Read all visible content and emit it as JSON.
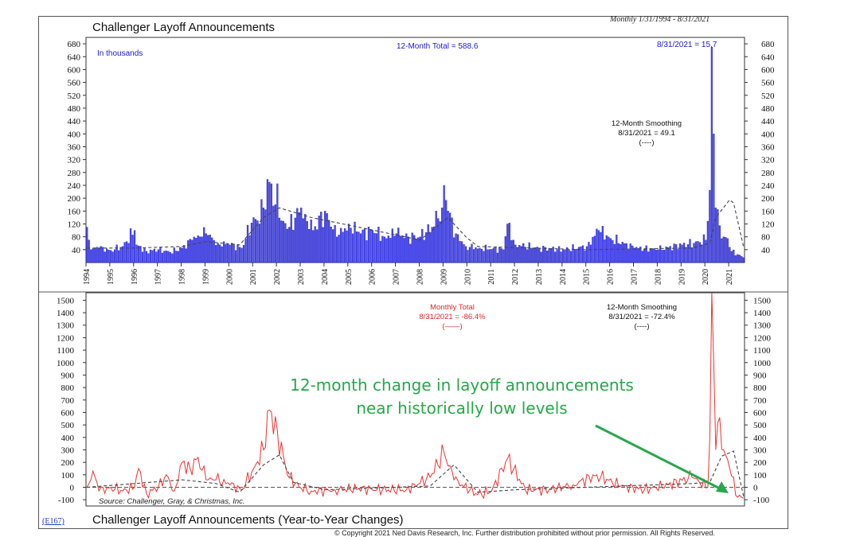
{
  "header": {
    "title": "Challenger Layoff Announcements",
    "date_range": "Monthly 1/31/1994 - 8/31/2021"
  },
  "footer": {
    "title": "Challenger Layoff Announcements (Year-to-Year Changes)",
    "chart_id": "(E167)",
    "copyright": "© Copyright 2021 Ned Davis Research, Inc.  Further distribution prohibited without prior permission.  All Rights Reserved.",
    "source": "Source: Challenger, Gray, & Christmas, Inc."
  },
  "top_panel": {
    "units_note": "In thousands",
    "total_label": "12-Month Total = 588.6",
    "last_label": "8/31/2021 = 15.7",
    "smoothing_label": "12-Month Smoothing",
    "smoothing_value": "8/31/2021 = 49.1",
    "smoothing_key": "(----)"
  },
  "bottom_panel": {
    "monthly_label": "Monthly Total",
    "monthly_value": "8/31/2021 = -86.4%",
    "monthly_key": "(——)",
    "smoothing_label": "12-Month Smoothing",
    "smoothing_value": "8/31/2021 = -72.4%",
    "smoothing_key": "(----)"
  },
  "annotation": {
    "line1": "12-month change in layoff announcements",
    "line2": "near historically low levels"
  },
  "colors": {
    "bars": "#4a4af0",
    "bar_edge": "#1818a8",
    "change_line": "#ee3333",
    "smoothing": "#444444",
    "annotation": "#27a84a"
  },
  "chart_data": [
    {
      "type": "bar",
      "title": "Challenger Layoff Announcements",
      "ylabel": "In thousands",
      "x_range": [
        "1994-01",
        "2021-08"
      ],
      "ylim": [
        0,
        700
      ],
      "yticks": [
        40,
        80,
        120,
        160,
        200,
        240,
        280,
        320,
        360,
        400,
        440,
        480,
        520,
        560,
        600,
        640,
        680
      ],
      "xticks": [
        "1994",
        "1995",
        "1996",
        "1997",
        "1998",
        "1999",
        "2000",
        "2001",
        "2002",
        "2003",
        "2004",
        "2005",
        "2006",
        "2007",
        "2008",
        "2009",
        "2010",
        "2011",
        "2012",
        "2013",
        "2014",
        "2015",
        "2016",
        "2017",
        "2018",
        "2019",
        "2020",
        "2021"
      ],
      "series_monthly_thousands_anchors": [
        [
          "1994-01",
          110
        ],
        [
          "1994-03",
          40
        ],
        [
          "1994-07",
          45
        ],
        [
          "1995-01",
          38
        ],
        [
          "1995-07",
          50
        ],
        [
          "1996-01",
          100
        ],
        [
          "1996-02",
          55
        ],
        [
          "1996-07",
          35
        ],
        [
          "1997-01",
          40
        ],
        [
          "1997-07",
          32
        ],
        [
          "1998-01",
          45
        ],
        [
          "1998-06",
          70
        ],
        [
          "1998-10",
          80
        ],
        [
          "1999-01",
          90
        ],
        [
          "1999-07",
          60
        ],
        [
          "2000-01",
          55
        ],
        [
          "2000-07",
          45
        ],
        [
          "2001-01",
          140
        ],
        [
          "2001-03",
          130
        ],
        [
          "2001-06",
          170
        ],
        [
          "2001-09",
          250
        ],
        [
          "2001-10",
          245
        ],
        [
          "2001-12",
          180
        ],
        [
          "2002-01",
          245
        ],
        [
          "2002-03",
          130
        ],
        [
          "2002-07",
          110
        ],
        [
          "2003-01",
          170
        ],
        [
          "2003-03",
          150
        ],
        [
          "2003-07",
          100
        ],
        [
          "2004-01",
          160
        ],
        [
          "2004-07",
          80
        ],
        [
          "2005-01",
          120
        ],
        [
          "2005-07",
          90
        ],
        [
          "2006-01",
          100
        ],
        [
          "2006-07",
          80
        ],
        [
          "2007-01",
          90
        ],
        [
          "2007-07",
          80
        ],
        [
          "2008-01",
          80
        ],
        [
          "2008-07",
          110
        ],
        [
          "2008-12",
          170
        ],
        [
          "2009-01",
          240
        ],
        [
          "2009-03",
          160
        ],
        [
          "2009-07",
          90
        ],
        [
          "2009-12",
          50
        ],
        [
          "2010-07",
          45
        ],
        [
          "2011-07",
          40
        ],
        [
          "2011-09",
          120
        ],
        [
          "2012-01",
          55
        ],
        [
          "2013-01",
          45
        ],
        [
          "2014-01",
          40
        ],
        [
          "2015-01",
          50
        ],
        [
          "2015-07",
          100
        ],
        [
          "2016-01",
          75
        ],
        [
          "2017-01",
          45
        ],
        [
          "2018-01",
          40
        ],
        [
          "2019-01",
          55
        ],
        [
          "2019-07",
          60
        ],
        [
          "2020-01",
          70
        ],
        [
          "2020-03",
          225
        ],
        [
          "2020-04",
          670
        ],
        [
          "2020-05",
          400
        ],
        [
          "2020-06",
          170
        ],
        [
          "2020-08",
          115
        ],
        [
          "2020-10",
          80
        ],
        [
          "2020-12",
          75
        ],
        [
          "2021-02",
          35
        ],
        [
          "2021-05",
          25
        ],
        [
          "2021-08",
          15.7
        ]
      ],
      "series_12m_smoothing_anchors": [
        [
          "1994-01",
          45
        ],
        [
          "1996-01",
          45
        ],
        [
          "1998-01",
          50
        ],
        [
          "1999-01",
          65
        ],
        [
          "2000-06",
          55
        ],
        [
          "2001-06",
          140
        ],
        [
          "2002-02",
          170
        ],
        [
          "2003-06",
          140
        ],
        [
          "2005-06",
          110
        ],
        [
          "2008-01",
          70
        ],
        [
          "2009-03",
          140
        ],
        [
          "2009-12",
          80
        ],
        [
          "2010-06",
          50
        ],
        [
          "2015-01",
          40
        ],
        [
          "2019-06",
          45
        ],
        [
          "2020-03",
          60
        ],
        [
          "2020-06",
          140
        ],
        [
          "2021-01",
          195
        ],
        [
          "2021-03",
          185
        ],
        [
          "2021-08",
          49.1
        ]
      ]
    },
    {
      "type": "line",
      "title": "Challenger Layoff Announcements (Year-to-Year Changes)",
      "ylim": [
        -150,
        1560
      ],
      "yticks": [
        -100,
        0,
        100,
        200,
        300,
        400,
        500,
        600,
        700,
        800,
        900,
        1000,
        1100,
        1200,
        1300,
        1400,
        1500
      ],
      "series": [
        {
          "name": "Monthly Total",
          "points": [
            [
              "1994-01",
              0
            ],
            [
              "1994-04",
              130
            ],
            [
              "1994-07",
              -30
            ],
            [
              "1995-01",
              0
            ],
            [
              "1995-07",
              -30
            ],
            [
              "1996-01",
              0
            ],
            [
              "1996-03",
              150
            ],
            [
              "1996-07",
              -50
            ],
            [
              "1997-01",
              0
            ],
            [
              "1997-05",
              100
            ],
            [
              "1997-09",
              -30
            ],
            [
              "1998-01",
              200
            ],
            [
              "1998-05",
              150
            ],
            [
              "1998-09",
              240
            ],
            [
              "1999-01",
              60
            ],
            [
              "1999-06",
              60
            ],
            [
              "2000-01",
              20
            ],
            [
              "2000-07",
              -20
            ],
            [
              "2001-01",
              150
            ],
            [
              "2001-06",
              300
            ],
            [
              "2001-09",
              620
            ],
            [
              "2002-01",
              450
            ],
            [
              "2002-06",
              100
            ],
            [
              "2002-12",
              0
            ],
            [
              "2003-06",
              -30
            ],
            [
              "2004-06",
              -20
            ],
            [
              "2005-06",
              -10
            ],
            [
              "2006-06",
              -20
            ],
            [
              "2007-06",
              -20
            ],
            [
              "2008-06",
              80
            ],
            [
              "2009-01",
              280
            ],
            [
              "2009-06",
              60
            ],
            [
              "2010-06",
              -60
            ],
            [
              "2011-01",
              -30
            ],
            [
              "2011-09",
              230
            ],
            [
              "2012-06",
              -20
            ],
            [
              "2013-06",
              -20
            ],
            [
              "2014-06",
              20
            ],
            [
              "2015-06",
              100
            ],
            [
              "2016-06",
              10
            ],
            [
              "2017-06",
              -20
            ],
            [
              "2018-06",
              20
            ],
            [
              "2019-06",
              80
            ],
            [
              "2020-02",
              0
            ],
            [
              "2020-03",
              400
            ],
            [
              "2020-04",
              1560
            ],
            [
              "2020-06",
              300
            ],
            [
              "2020-08",
              560
            ],
            [
              "2020-10",
              300
            ],
            [
              "2021-01",
              150
            ],
            [
              "2021-05",
              -80
            ],
            [
              "2021-08",
              -86.4
            ]
          ]
        },
        {
          "name": "12-Month Smoothing",
          "points": [
            [
              "1994-01",
              0
            ],
            [
              "1998-01",
              60
            ],
            [
              "1999-06",
              30
            ],
            [
              "2000-06",
              -40
            ],
            [
              "2001-06",
              180
            ],
            [
              "2002-02",
              260
            ],
            [
              "2002-09",
              40
            ],
            [
              "2004-01",
              -20
            ],
            [
              "2008-06",
              10
            ],
            [
              "2009-06",
              180
            ],
            [
              "2010-06",
              -40
            ],
            [
              "2012-01",
              -20
            ],
            [
              "2019-06",
              30
            ],
            [
              "2020-03",
              40
            ],
            [
              "2020-09",
              250
            ],
            [
              "2021-03",
              290
            ],
            [
              "2021-08",
              -72.4
            ]
          ]
        }
      ]
    }
  ]
}
